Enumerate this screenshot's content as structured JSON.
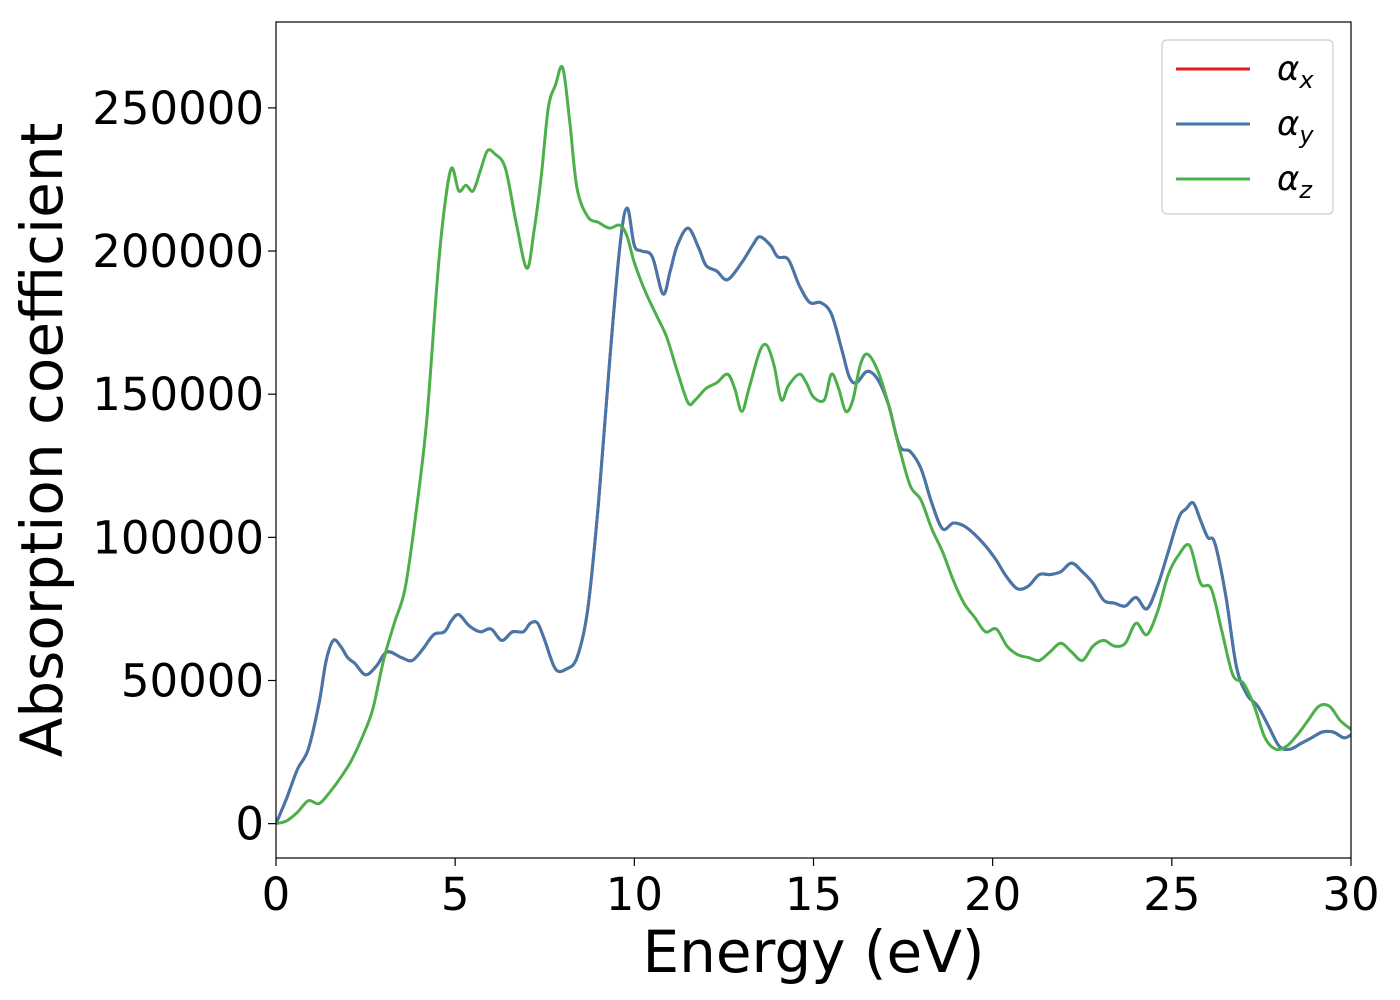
{
  "chart_data": {
    "type": "line",
    "title": "",
    "xlabel": "Energy (eV)",
    "ylabel": "Absorption coefficient",
    "xlim": [
      0,
      30
    ],
    "ylim": [
      -12000,
      280000
    ],
    "xticks": [
      0,
      5,
      10,
      15,
      20,
      25,
      30
    ],
    "xtick_labels": [
      "0",
      "5",
      "10",
      "15",
      "20",
      "25",
      "30"
    ],
    "yticks": [
      0,
      50000,
      100000,
      150000,
      200000,
      250000
    ],
    "ytick_labels": [
      "0",
      "50000",
      "100000",
      "150000",
      "200000",
      "250000"
    ],
    "grid": false,
    "legend_position": "top-right",
    "series": [
      {
        "name": "αx",
        "label_base": "α",
        "label_sub": "x",
        "color": "#e41a1c",
        "x": [
          0,
          0.3,
          0.6,
          0.9,
          1.2,
          1.4,
          1.6,
          1.8,
          2.0,
          2.2,
          2.5,
          2.8,
          3.1,
          3.5,
          3.8,
          4.1,
          4.4,
          4.7,
          4.9,
          5.1,
          5.4,
          5.7,
          6.0,
          6.3,
          6.6,
          6.9,
          7.1,
          7.3,
          7.5,
          7.8,
          8.1,
          8.4,
          8.7,
          9.0,
          9.3,
          9.6,
          9.8,
          10.0,
          10.2,
          10.5,
          10.8,
          11.0,
          11.2,
          11.5,
          11.8,
          12.0,
          12.3,
          12.6,
          13.0,
          13.3,
          13.5,
          13.8,
          14.0,
          14.3,
          14.6,
          14.9,
          15.2,
          15.5,
          15.8,
          16.0,
          16.2,
          16.5,
          16.8,
          17.1,
          17.4,
          17.7,
          18.0,
          18.3,
          18.6,
          18.9,
          19.2,
          19.5,
          19.8,
          20.1,
          20.4,
          20.7,
          21.0,
          21.3,
          21.6,
          21.9,
          22.2,
          22.5,
          22.8,
          23.1,
          23.4,
          23.7,
          24.0,
          24.3,
          24.6,
          24.9,
          25.2,
          25.4,
          25.6,
          25.8,
          26.0,
          26.2,
          26.5,
          26.8,
          27.1,
          27.4,
          27.7,
          28.0,
          28.3,
          28.6,
          28.9,
          29.2,
          29.5,
          29.8,
          30.0
        ],
        "y": [
          0,
          9000,
          19000,
          26000,
          42000,
          57000,
          64000,
          62000,
          58000,
          56000,
          52000,
          55000,
          60000,
          58000,
          57000,
          61000,
          66000,
          67000,
          71000,
          73000,
          69000,
          67000,
          68000,
          64000,
          67000,
          67000,
          70000,
          70000,
          64000,
          54000,
          54000,
          58000,
          75000,
          112000,
          160000,
          202000,
          215000,
          202000,
          200000,
          198000,
          185000,
          193000,
          202000,
          208000,
          201000,
          195000,
          193000,
          190000,
          196000,
          202000,
          205000,
          202000,
          198000,
          197000,
          188000,
          182000,
          182000,
          178000,
          165000,
          156000,
          154000,
          158000,
          155000,
          146000,
          132000,
          130000,
          124000,
          112000,
          103000,
          105000,
          104000,
          101000,
          97000,
          92000,
          86000,
          82000,
          83000,
          87000,
          87000,
          88000,
          91000,
          88000,
          84000,
          78000,
          77000,
          76000,
          79000,
          75000,
          83000,
          95000,
          107000,
          110000,
          112000,
          106000,
          100000,
          98000,
          80000,
          55000,
          45000,
          41000,
          34000,
          27000,
          26000,
          28000,
          30000,
          32000,
          32000,
          30000,
          31000
        ]
      },
      {
        "name": "αy",
        "label_base": "α",
        "label_sub": "y",
        "color": "#4477aa",
        "x": [
          0,
          0.3,
          0.6,
          0.9,
          1.2,
          1.4,
          1.6,
          1.8,
          2.0,
          2.2,
          2.5,
          2.8,
          3.1,
          3.5,
          3.8,
          4.1,
          4.4,
          4.7,
          4.9,
          5.1,
          5.4,
          5.7,
          6.0,
          6.3,
          6.6,
          6.9,
          7.1,
          7.3,
          7.5,
          7.8,
          8.1,
          8.4,
          8.7,
          9.0,
          9.3,
          9.6,
          9.8,
          10.0,
          10.2,
          10.5,
          10.8,
          11.0,
          11.2,
          11.5,
          11.8,
          12.0,
          12.3,
          12.6,
          13.0,
          13.3,
          13.5,
          13.8,
          14.0,
          14.3,
          14.6,
          14.9,
          15.2,
          15.5,
          15.8,
          16.0,
          16.2,
          16.5,
          16.8,
          17.1,
          17.4,
          17.7,
          18.0,
          18.3,
          18.6,
          18.9,
          19.2,
          19.5,
          19.8,
          20.1,
          20.4,
          20.7,
          21.0,
          21.3,
          21.6,
          21.9,
          22.2,
          22.5,
          22.8,
          23.1,
          23.4,
          23.7,
          24.0,
          24.3,
          24.6,
          24.9,
          25.2,
          25.4,
          25.6,
          25.8,
          26.0,
          26.2,
          26.5,
          26.8,
          27.1,
          27.4,
          27.7,
          28.0,
          28.3,
          28.6,
          28.9,
          29.2,
          29.5,
          29.8,
          30.0
        ],
        "y": [
          0,
          9000,
          19000,
          26000,
          42000,
          57000,
          64000,
          62000,
          58000,
          56000,
          52000,
          55000,
          60000,
          58000,
          57000,
          61000,
          66000,
          67000,
          71000,
          73000,
          69000,
          67000,
          68000,
          64000,
          67000,
          67000,
          70000,
          70000,
          64000,
          54000,
          54000,
          58000,
          75000,
          112000,
          160000,
          202000,
          215000,
          202000,
          200000,
          198000,
          185000,
          193000,
          202000,
          208000,
          201000,
          195000,
          193000,
          190000,
          196000,
          202000,
          205000,
          202000,
          198000,
          197000,
          188000,
          182000,
          182000,
          178000,
          165000,
          156000,
          154000,
          158000,
          155000,
          146000,
          132000,
          130000,
          124000,
          112000,
          103000,
          105000,
          104000,
          101000,
          97000,
          92000,
          86000,
          82000,
          83000,
          87000,
          87000,
          88000,
          91000,
          88000,
          84000,
          78000,
          77000,
          76000,
          79000,
          75000,
          83000,
          95000,
          107000,
          110000,
          112000,
          106000,
          100000,
          98000,
          80000,
          55000,
          45000,
          41000,
          34000,
          27000,
          26000,
          28000,
          30000,
          32000,
          32000,
          30000,
          31000
        ]
      },
      {
        "name": "αz",
        "label_base": "α",
        "label_sub": "z",
        "color": "#4daf4a",
        "x": [
          0,
          0.3,
          0.6,
          0.9,
          1.2,
          1.5,
          1.8,
          2.1,
          2.4,
          2.7,
          3.0,
          3.3,
          3.6,
          3.9,
          4.2,
          4.5,
          4.7,
          4.9,
          5.1,
          5.3,
          5.5,
          5.7,
          5.9,
          6.1,
          6.4,
          6.7,
          7.0,
          7.2,
          7.4,
          7.6,
          7.8,
          8.0,
          8.2,
          8.4,
          8.7,
          9.0,
          9.3,
          9.6,
          9.8,
          10.0,
          10.3,
          10.6,
          10.9,
          11.2,
          11.5,
          11.7,
          12.0,
          12.3,
          12.6,
          12.8,
          13.0,
          13.2,
          13.5,
          13.7,
          13.9,
          14.1,
          14.3,
          14.6,
          14.8,
          15.0,
          15.3,
          15.5,
          15.7,
          15.9,
          16.1,
          16.3,
          16.5,
          16.8,
          17.1,
          17.4,
          17.7,
          18.0,
          18.3,
          18.6,
          18.9,
          19.2,
          19.5,
          19.8,
          20.1,
          20.4,
          20.7,
          21.0,
          21.3,
          21.6,
          21.9,
          22.2,
          22.5,
          22.8,
          23.1,
          23.4,
          23.7,
          24.0,
          24.3,
          24.6,
          24.9,
          25.2,
          25.5,
          25.8,
          26.1,
          26.4,
          26.7,
          27.0,
          27.3,
          27.6,
          27.9,
          28.2,
          28.5,
          28.8,
          29.1,
          29.4,
          29.7,
          30.0
        ],
        "y": [
          0,
          1000,
          4000,
          8000,
          7000,
          11000,
          16000,
          22000,
          30000,
          40000,
          57000,
          70000,
          82000,
          108000,
          140000,
          190000,
          215000,
          229000,
          221000,
          223000,
          221000,
          228000,
          235000,
          234000,
          229000,
          210000,
          194000,
          207000,
          226000,
          250000,
          258000,
          264000,
          245000,
          222000,
          212000,
          210000,
          208000,
          209000,
          205000,
          196000,
          186000,
          178000,
          170000,
          158000,
          147000,
          148000,
          152000,
          154000,
          157000,
          152000,
          144000,
          152000,
          165000,
          167000,
          160000,
          148000,
          153000,
          157000,
          154000,
          149000,
          148000,
          157000,
          152000,
          144000,
          148000,
          160000,
          164000,
          158000,
          146000,
          131000,
          118000,
          113000,
          103000,
          95000,
          85000,
          77000,
          72000,
          67000,
          68000,
          62000,
          59000,
          58000,
          57000,
          60000,
          63000,
          60000,
          57000,
          62000,
          64000,
          62000,
          63000,
          70000,
          66000,
          74000,
          87000,
          94000,
          97000,
          84000,
          82000,
          67000,
          52000,
          49000,
          41000,
          30000,
          26000,
          27000,
          31000,
          36000,
          41000,
          41000,
          36000,
          33000
        ]
      }
    ]
  }
}
